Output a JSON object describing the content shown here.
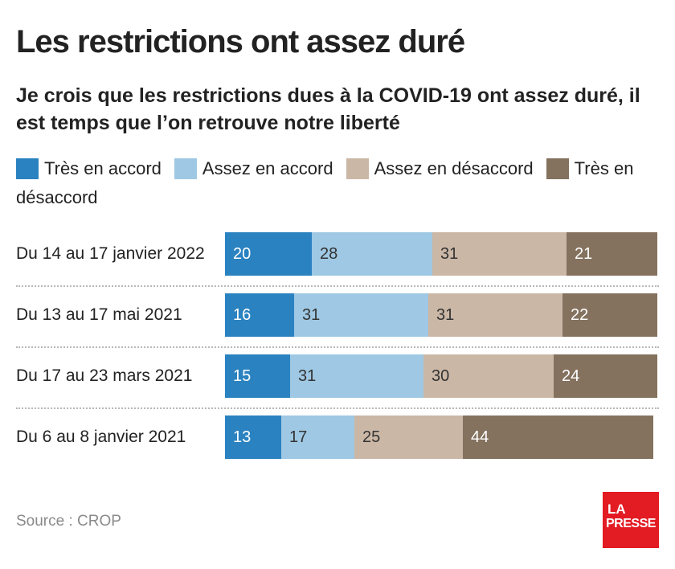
{
  "title": "Les restrictions ont assez duré",
  "subtitle": "Je crois que les restrictions dues à la COVID-19 ont assez duré, il est temps que l’on retrouve notre liberté",
  "source": "Source : CROP",
  "logo": {
    "line1": "LA",
    "line2": "PRESSE"
  },
  "colors": {
    "tres_accord": "#2a82c0",
    "assez_accord": "#9ec8e3",
    "assez_desaccord": "#cbb7a6",
    "tres_desaccord": "#84725f"
  },
  "chart_data": {
    "type": "bar",
    "orientation": "horizontal",
    "stacked": true,
    "categories": [
      "Du 14 au 17 janvier 2022",
      "Du 13 au 17 mai 2021",
      "Du 17 au 23 mars 2021",
      "Du 6 au 8 janvier 2021"
    ],
    "series": [
      {
        "name": "Très en accord",
        "color": "#2a82c0",
        "values": [
          20,
          16,
          15,
          13
        ]
      },
      {
        "name": "Assez en accord",
        "color": "#9ec8e3",
        "values": [
          28,
          31,
          31,
          17
        ]
      },
      {
        "name": "Assez en désaccord",
        "color": "#cbb7a6",
        "values": [
          31,
          31,
          30,
          25
        ]
      },
      {
        "name": "Très en désaccord",
        "color": "#84725f",
        "values": [
          21,
          22,
          24,
          44
        ]
      }
    ],
    "xlim": [
      0,
      100
    ],
    "legend_position": "top",
    "grid": false
  }
}
